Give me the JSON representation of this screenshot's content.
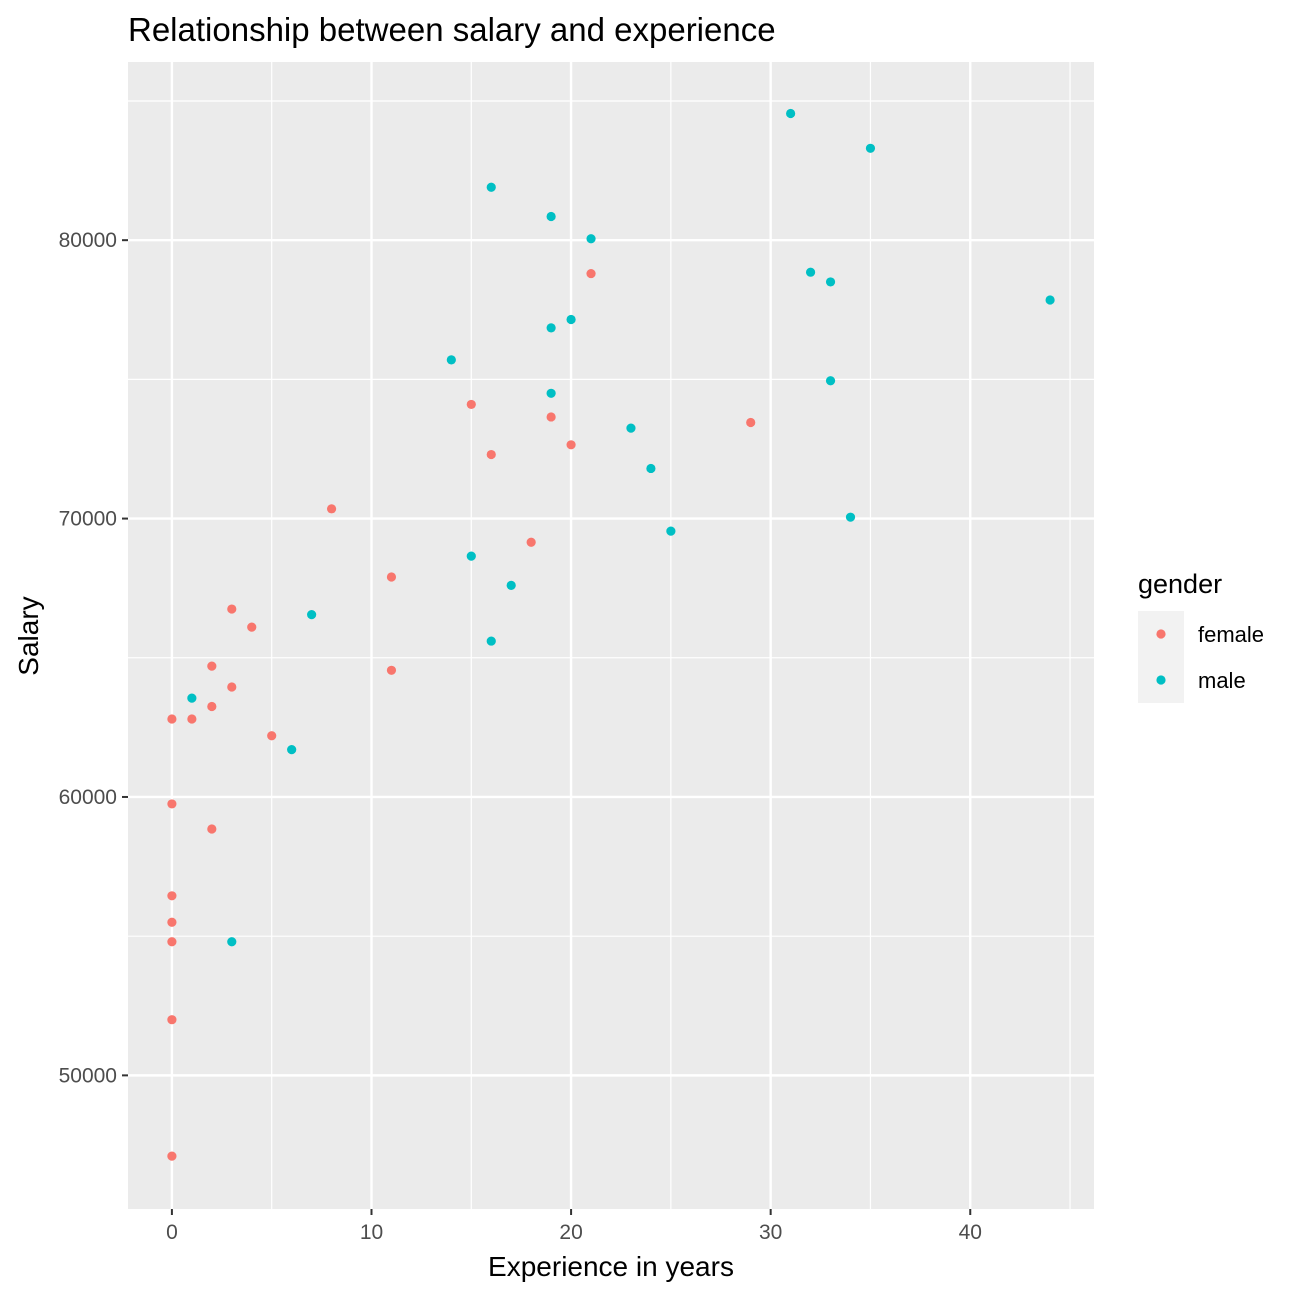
{
  "chart_data": {
    "type": "scatter",
    "title": "Relationship between salary and experience",
    "xlabel": "Experience in years",
    "ylabel": "Salary",
    "xlim": [
      -2.2,
      46.2
    ],
    "ylim": [
      45200,
      86400
    ],
    "x_ticks": [
      0,
      10,
      20,
      30,
      40
    ],
    "x_tick_labels": [
      "0",
      "10",
      "20",
      "30",
      "40"
    ],
    "x_minor_ticks": [
      5,
      15,
      25,
      35,
      45
    ],
    "y_ticks": [
      50000,
      60000,
      70000,
      80000
    ],
    "y_tick_labels": [
      "50000",
      "60000",
      "70000",
      "80000"
    ],
    "y_minor_ticks": [
      55000,
      65000,
      75000,
      85000
    ],
    "grid": true,
    "legend": {
      "title": "gender",
      "placement": "right"
    },
    "series": [
      {
        "name": "female",
        "color": "#F8766D",
        "points": [
          {
            "x": 0,
            "y": 47100
          },
          {
            "x": 0,
            "y": 52000
          },
          {
            "x": 0,
            "y": 54800
          },
          {
            "x": 0,
            "y": 55500
          },
          {
            "x": 0,
            "y": 56450
          },
          {
            "x": 0,
            "y": 59750
          },
          {
            "x": 0,
            "y": 62800
          },
          {
            "x": 1,
            "y": 62800
          },
          {
            "x": 2,
            "y": 58850
          },
          {
            "x": 2,
            "y": 63250
          },
          {
            "x": 2,
            "y": 64700
          },
          {
            "x": 3,
            "y": 63950
          },
          {
            "x": 3,
            "y": 66750
          },
          {
            "x": 4,
            "y": 66100
          },
          {
            "x": 5,
            "y": 62200
          },
          {
            "x": 8,
            "y": 70350
          },
          {
            "x": 11,
            "y": 64550
          },
          {
            "x": 11,
            "y": 67900
          },
          {
            "x": 15,
            "y": 74100
          },
          {
            "x": 16,
            "y": 72300
          },
          {
            "x": 18,
            "y": 69150
          },
          {
            "x": 19,
            "y": 73650
          },
          {
            "x": 20,
            "y": 72650
          },
          {
            "x": 21,
            "y": 78800
          },
          {
            "x": 29,
            "y": 73450
          }
        ]
      },
      {
        "name": "male",
        "color": "#00BFC4",
        "points": [
          {
            "x": 1,
            "y": 63550
          },
          {
            "x": 3,
            "y": 54800
          },
          {
            "x": 6,
            "y": 61700
          },
          {
            "x": 7,
            "y": 66550
          },
          {
            "x": 14,
            "y": 75700
          },
          {
            "x": 15,
            "y": 68650
          },
          {
            "x": 16,
            "y": 65600
          },
          {
            "x": 16,
            "y": 81900
          },
          {
            "x": 17,
            "y": 67600
          },
          {
            "x": 19,
            "y": 74500
          },
          {
            "x": 19,
            "y": 76850
          },
          {
            "x": 19,
            "y": 80850
          },
          {
            "x": 20,
            "y": 77150
          },
          {
            "x": 21,
            "y": 80050
          },
          {
            "x": 23,
            "y": 73250
          },
          {
            "x": 24,
            "y": 71800
          },
          {
            "x": 25,
            "y": 69550
          },
          {
            "x": 31,
            "y": 84550
          },
          {
            "x": 32,
            "y": 78850
          },
          {
            "x": 33,
            "y": 74950
          },
          {
            "x": 33,
            "y": 78500
          },
          {
            "x": 34,
            "y": 70050
          },
          {
            "x": 35,
            "y": 83300
          },
          {
            "x": 44,
            "y": 77850
          }
        ]
      }
    ]
  }
}
